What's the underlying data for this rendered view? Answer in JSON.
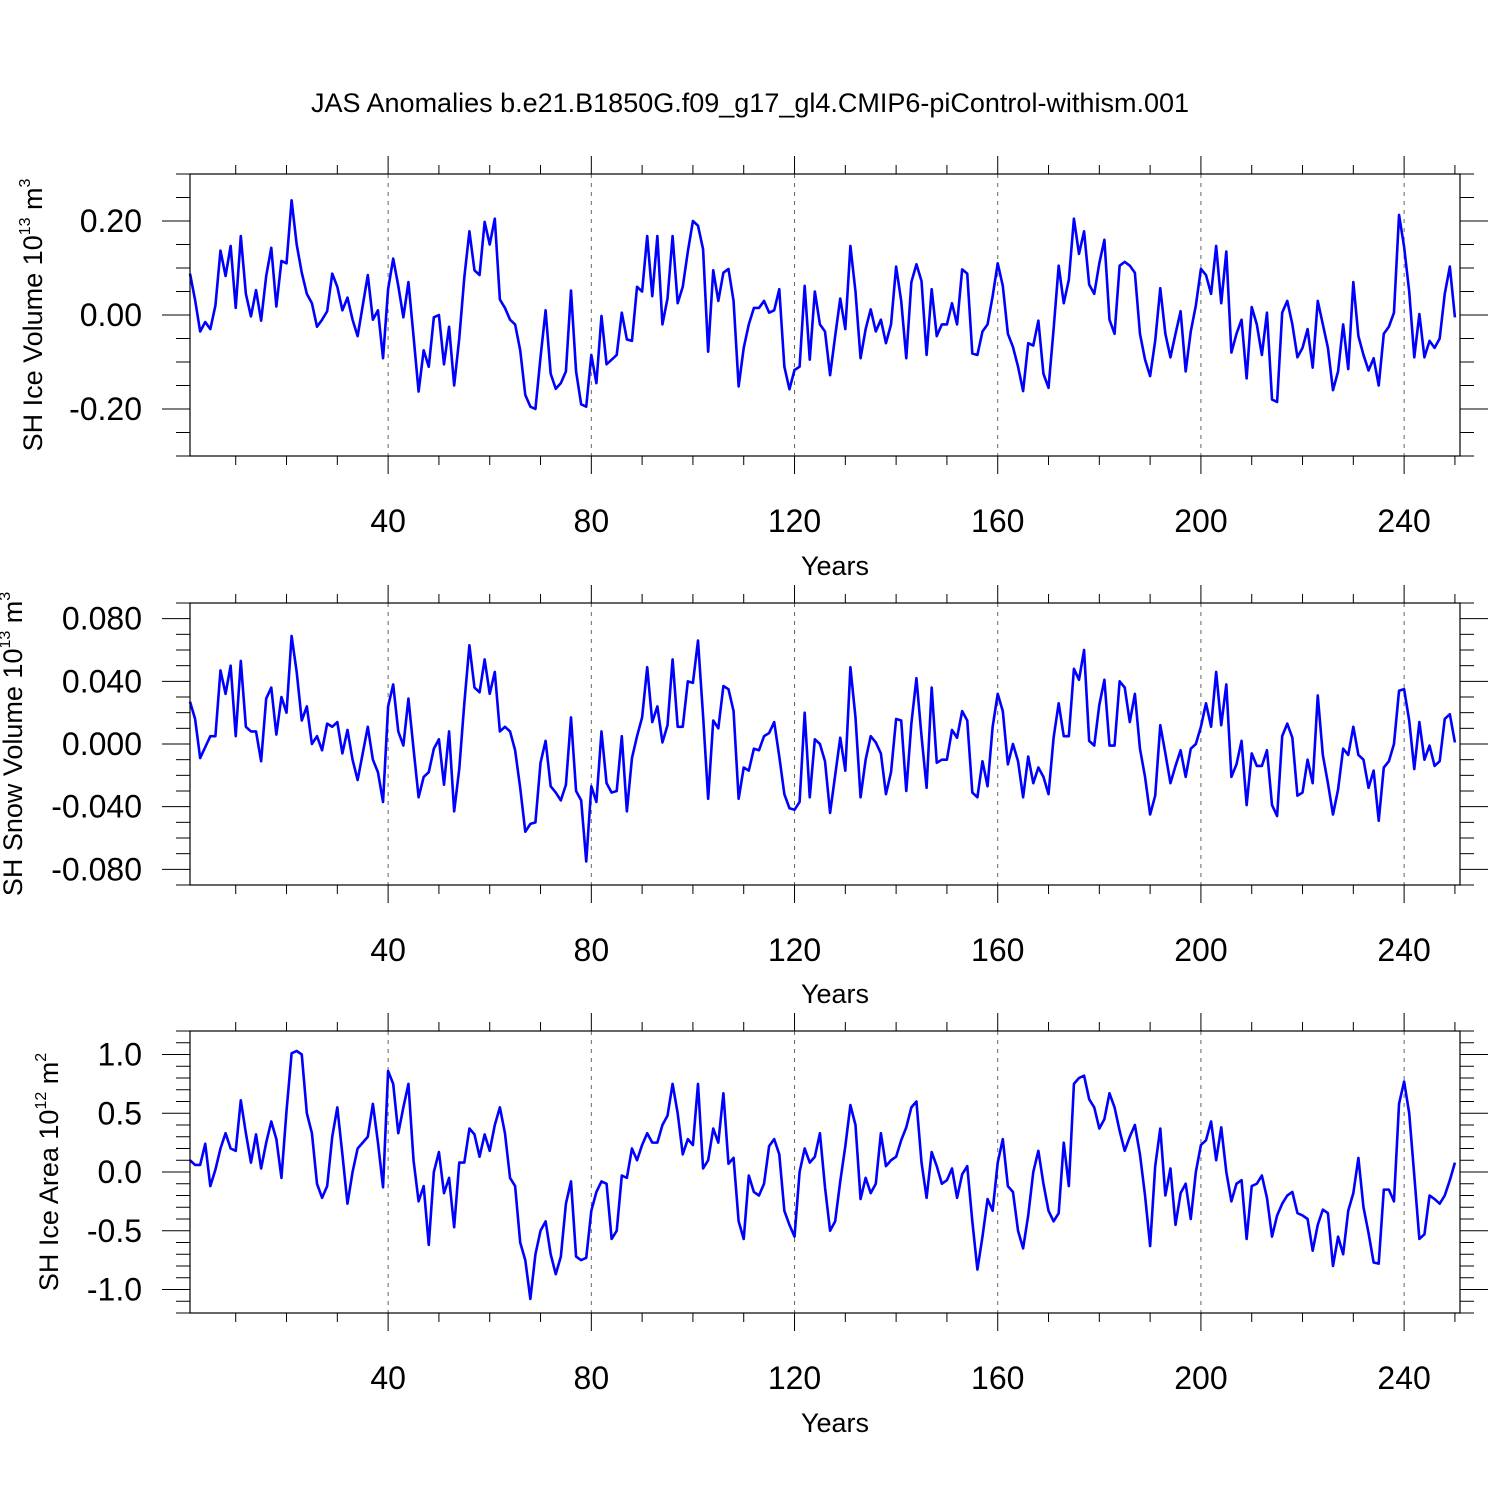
{
  "title": "JAS Anomalies b.e21.B1850G.f09_g17_gl4.CMIP6-piControl-withism.001",
  "line_color": "#0000ff",
  "chart_data": [
    {
      "type": "line",
      "ylabel": "SH Ice Volume 10",
      "ylabel_sup": "13",
      "ylabel_unit": " m",
      "ylabel_unit_sup": "3",
      "xlabel": "Years",
      "xlim": [
        1,
        251
      ],
      "ylim": [
        -0.3,
        0.3
      ],
      "xticks": [
        40,
        80,
        120,
        160,
        200,
        240
      ],
      "xtick_labels": [
        "40",
        "80",
        "120",
        "160",
        "200",
        "240"
      ],
      "yticks": [
        -0.2,
        0.0,
        0.2
      ],
      "ytick_labels": [
        "-0.20",
        "0.00",
        "0.20"
      ],
      "y_minor_step": 0.05,
      "series": [
        {
          "x_start": 1,
          "values": [
            0.088,
            0.032,
            -0.035,
            -0.015,
            -0.03,
            0.02,
            0.137,
            0.083,
            0.147,
            0.015,
            0.168,
            0.045,
            -0.003,
            0.053,
            -0.012,
            0.083,
            0.143,
            0.018,
            0.115,
            0.11,
            0.244,
            0.15,
            0.09,
            0.045,
            0.025,
            -0.025,
            -0.01,
            0.008,
            0.088,
            0.06,
            0.01,
            0.037,
            -0.01,
            -0.045,
            0.02,
            0.085,
            -0.01,
            0.01,
            -0.092,
            0.055,
            0.12,
            0.062,
            -0.005,
            0.07,
            -0.045,
            -0.163,
            -0.075,
            -0.11,
            -0.005,
            0.0,
            -0.105,
            -0.025,
            -0.15,
            -0.05,
            0.08,
            0.178,
            0.095,
            0.085,
            0.198,
            0.15,
            0.205,
            0.033,
            0.015,
            -0.01,
            -0.02,
            -0.075,
            -0.17,
            -0.195,
            -0.2,
            -0.09,
            0.01,
            -0.125,
            -0.157,
            -0.145,
            -0.12,
            0.052,
            -0.12,
            -0.19,
            -0.195,
            -0.085,
            -0.145,
            -0.002,
            -0.105,
            -0.095,
            -0.085,
            0.005,
            -0.052,
            -0.055,
            0.06,
            0.05,
            0.168,
            0.04,
            0.168,
            -0.02,
            0.035,
            0.168,
            0.025,
            0.06,
            0.135,
            0.2,
            0.19,
            0.14,
            -0.078,
            0.095,
            0.03,
            0.09,
            0.098,
            0.03,
            -0.152,
            -0.07,
            -0.02,
            0.015,
            0.015,
            0.03,
            0.005,
            0.01,
            0.055,
            -0.11,
            -0.158,
            -0.117,
            -0.11,
            0.062,
            -0.095,
            0.05,
            -0.02,
            -0.035,
            -0.128,
            -0.045,
            0.035,
            -0.03,
            0.147,
            0.05,
            -0.092,
            -0.03,
            0.012,
            -0.035,
            -0.01,
            -0.06,
            -0.02,
            0.103,
            0.03,
            -0.092,
            0.07,
            0.108,
            0.072,
            -0.085,
            0.055,
            -0.045,
            -0.02,
            -0.02,
            0.025,
            -0.02,
            0.097,
            0.088,
            -0.082,
            -0.085,
            -0.035,
            -0.02,
            0.04,
            0.11,
            0.062,
            -0.04,
            -0.068,
            -0.11,
            -0.162,
            -0.06,
            -0.065,
            -0.012,
            -0.125,
            -0.155,
            -0.03,
            0.105,
            0.025,
            0.075,
            0.205,
            0.13,
            0.178,
            0.065,
            0.045,
            0.11,
            0.16,
            -0.01,
            -0.04,
            0.105,
            0.113,
            0.105,
            0.09,
            -0.04,
            -0.095,
            -0.13,
            -0.055,
            0.057,
            -0.04,
            -0.09,
            -0.04,
            0.008,
            -0.12,
            -0.035,
            0.02,
            0.098,
            0.085,
            0.045,
            0.147,
            0.025,
            0.135,
            -0.08,
            -0.04,
            -0.01,
            -0.135,
            0.017,
            -0.02,
            -0.085,
            0.005,
            -0.18,
            -0.185,
            0.005,
            0.03,
            -0.02,
            -0.09,
            -0.07,
            -0.03,
            -0.112,
            0.03,
            -0.02,
            -0.07,
            -0.16,
            -0.12,
            -0.02,
            -0.115,
            0.07,
            -0.045,
            -0.085,
            -0.118,
            -0.092,
            -0.15,
            -0.04,
            -0.025,
            0.005,
            0.213,
            0.145,
            0.05,
            -0.09,
            0.002,
            -0.09,
            -0.055,
            -0.07,
            -0.05,
            0.045,
            0.103,
            -0.005
          ]
        }
      ]
    },
    {
      "type": "line",
      "ylabel": "SH Snow Volume 10",
      "ylabel_sup": "13",
      "ylabel_unit": " m",
      "ylabel_unit_sup": "3",
      "xlabel": "Years",
      "xlim": [
        1,
        251
      ],
      "ylim": [
        -0.09,
        0.09
      ],
      "xticks": [
        40,
        80,
        120,
        160,
        200,
        240
      ],
      "xtick_labels": [
        "40",
        "80",
        "120",
        "160",
        "200",
        "240"
      ],
      "yticks": [
        -0.08,
        -0.04,
        0.0,
        0.04,
        0.08
      ],
      "ytick_labels": [
        "-0.080",
        "-0.040",
        "0.000",
        "0.040",
        "0.080"
      ],
      "y_minor_step": 0.01,
      "series": [
        {
          "x_start": 1,
          "values": [
            0.027,
            0.016,
            -0.009,
            -0.002,
            0.005,
            0.005,
            0.047,
            0.032,
            0.05,
            0.005,
            0.053,
            0.011,
            0.008,
            0.008,
            -0.011,
            0.029,
            0.036,
            0.006,
            0.03,
            0.02,
            0.069,
            0.046,
            0.015,
            0.024,
            0.0,
            0.005,
            -0.004,
            0.013,
            0.011,
            0.014,
            -0.006,
            0.009,
            -0.01,
            -0.023,
            -0.006,
            0.011,
            -0.01,
            -0.018,
            -0.037,
            0.024,
            0.038,
            0.008,
            -0.001,
            0.029,
            -0.003,
            -0.034,
            -0.021,
            -0.018,
            -0.003,
            0.003,
            -0.026,
            0.008,
            -0.043,
            -0.016,
            0.026,
            0.063,
            0.036,
            0.033,
            0.054,
            0.032,
            0.046,
            0.008,
            0.011,
            0.008,
            -0.004,
            -0.028,
            -0.056,
            -0.051,
            -0.05,
            -0.012,
            0.002,
            -0.027,
            -0.031,
            -0.036,
            -0.026,
            0.017,
            -0.03,
            -0.036,
            -0.075,
            -0.027,
            -0.037,
            0.008,
            -0.025,
            -0.031,
            -0.03,
            0.005,
            -0.043,
            -0.009,
            0.005,
            0.017,
            0.049,
            0.014,
            0.024,
            0.001,
            0.012,
            0.054,
            0.011,
            0.011,
            0.04,
            0.039,
            0.066,
            0.018,
            -0.035,
            0.015,
            0.01,
            0.037,
            0.035,
            0.021,
            -0.035,
            -0.015,
            -0.017,
            -0.003,
            -0.004,
            0.005,
            0.007,
            0.014,
            -0.008,
            -0.032,
            -0.041,
            -0.042,
            -0.037,
            0.02,
            -0.034,
            0.003,
            0.0,
            -0.011,
            -0.044,
            -0.02,
            0.004,
            -0.017,
            0.049,
            0.017,
            -0.034,
            -0.01,
            0.005,
            0.001,
            -0.006,
            -0.032,
            -0.018,
            0.016,
            0.015,
            -0.03,
            0.013,
            0.042,
            0.005,
            -0.028,
            0.036,
            -0.012,
            -0.01,
            -0.01,
            0.009,
            0.004,
            0.021,
            0.015,
            -0.031,
            -0.034,
            -0.011,
            -0.027,
            0.011,
            0.032,
            0.021,
            -0.013,
            0.0,
            -0.011,
            -0.034,
            -0.008,
            -0.025,
            -0.015,
            -0.021,
            -0.032,
            0.004,
            0.026,
            0.005,
            0.005,
            0.048,
            0.041,
            0.06,
            0.002,
            -0.001,
            0.025,
            0.041,
            -0.001,
            -0.001,
            0.04,
            0.036,
            0.014,
            0.032,
            -0.003,
            -0.021,
            -0.045,
            -0.033,
            0.012,
            -0.006,
            -0.025,
            -0.014,
            -0.004,
            -0.021,
            -0.003,
            0.0,
            0.011,
            0.026,
            0.011,
            0.046,
            0.012,
            0.038,
            -0.021,
            -0.013,
            0.002,
            -0.039,
            -0.006,
            -0.014,
            -0.014,
            -0.004,
            -0.039,
            -0.046,
            0.005,
            0.013,
            0.004,
            -0.033,
            -0.031,
            -0.01,
            -0.025,
            0.031,
            -0.007,
            -0.025,
            -0.045,
            -0.029,
            -0.003,
            -0.007,
            0.011,
            -0.007,
            -0.01,
            -0.028,
            -0.017,
            -0.049,
            -0.015,
            -0.011,
            0.0,
            0.034,
            0.035,
            0.015,
            -0.016,
            0.014,
            -0.01,
            -0.001,
            -0.014,
            -0.011,
            0.016,
            0.019,
            0.001
          ]
        }
      ]
    },
    {
      "type": "line",
      "ylabel": "SH Ice Area 10",
      "ylabel_sup": "12",
      "ylabel_unit": " m",
      "ylabel_unit_sup": "2",
      "xlabel": "Years",
      "xlim": [
        1,
        251
      ],
      "ylim": [
        -1.2,
        1.2
      ],
      "xticks": [
        40,
        80,
        120,
        160,
        200,
        240
      ],
      "xtick_labels": [
        "40",
        "80",
        "120",
        "160",
        "200",
        "240"
      ],
      "yticks": [
        -1.0,
        -0.5,
        0.0,
        0.5,
        1.0
      ],
      "ytick_labels": [
        "-1.0",
        "-0.5",
        "0.0",
        "0.5",
        "1.0"
      ],
      "y_minor_step": 0.1,
      "series": [
        {
          "x_start": 1,
          "values": [
            0.1,
            0.06,
            0.06,
            0.24,
            -0.12,
            0.02,
            0.2,
            0.33,
            0.2,
            0.18,
            0.61,
            0.33,
            0.08,
            0.32,
            0.03,
            0.25,
            0.43,
            0.28,
            -0.05,
            0.52,
            1.01,
            1.03,
            1.0,
            0.5,
            0.33,
            -0.1,
            -0.22,
            -0.12,
            0.3,
            0.55,
            0.15,
            -0.27,
            0.0,
            0.2,
            0.25,
            0.3,
            0.58,
            0.25,
            -0.13,
            0.86,
            0.75,
            0.33,
            0.55,
            0.75,
            0.1,
            -0.25,
            -0.12,
            -0.62,
            0.0,
            0.17,
            -0.18,
            -0.05,
            -0.47,
            0.08,
            0.08,
            0.37,
            0.32,
            0.13,
            0.32,
            0.18,
            0.4,
            0.55,
            0.33,
            -0.05,
            -0.12,
            -0.6,
            -0.75,
            -1.08,
            -0.7,
            -0.5,
            -0.42,
            -0.7,
            -0.87,
            -0.72,
            -0.27,
            -0.08,
            -0.72,
            -0.75,
            -0.73,
            -0.33,
            -0.17,
            -0.08,
            -0.1,
            -0.57,
            -0.5,
            -0.03,
            -0.05,
            0.2,
            0.1,
            0.23,
            0.33,
            0.25,
            0.25,
            0.4,
            0.48,
            0.75,
            0.5,
            0.15,
            0.28,
            0.23,
            0.75,
            0.03,
            0.1,
            0.37,
            0.25,
            0.67,
            0.07,
            0.12,
            -0.42,
            -0.57,
            -0.03,
            -0.17,
            -0.2,
            -0.1,
            0.22,
            0.28,
            0.15,
            -0.33,
            -0.45,
            -0.55,
            0.0,
            0.2,
            0.08,
            0.13,
            0.33,
            -0.13,
            -0.5,
            -0.42,
            -0.08,
            0.22,
            0.57,
            0.4,
            -0.23,
            -0.05,
            -0.18,
            -0.1,
            0.33,
            0.05,
            0.1,
            0.13,
            0.27,
            0.38,
            0.55,
            0.6,
            0.08,
            -0.22,
            0.17,
            0.05,
            -0.1,
            -0.07,
            0.03,
            -0.22,
            -0.02,
            0.05,
            -0.42,
            -0.83,
            -0.55,
            -0.23,
            -0.33,
            0.08,
            0.28,
            -0.12,
            -0.17,
            -0.5,
            -0.65,
            -0.37,
            0.0,
            0.18,
            -0.1,
            -0.33,
            -0.42,
            -0.35,
            0.25,
            -0.12,
            0.75,
            0.8,
            0.82,
            0.62,
            0.55,
            0.37,
            0.45,
            0.67,
            0.55,
            0.35,
            0.18,
            0.3,
            0.4,
            0.15,
            -0.2,
            -0.63,
            0.05,
            0.37,
            -0.2,
            0.03,
            -0.45,
            -0.18,
            -0.1,
            -0.4,
            0.0,
            0.23,
            0.27,
            0.43,
            0.1,
            0.38,
            0.0,
            -0.25,
            -0.1,
            -0.07,
            -0.57,
            -0.12,
            -0.1,
            -0.03,
            -0.22,
            -0.55,
            -0.37,
            -0.27,
            -0.2,
            -0.17,
            -0.35,
            -0.37,
            -0.4,
            -0.67,
            -0.45,
            -0.32,
            -0.35,
            -0.8,
            -0.55,
            -0.7,
            -0.33,
            -0.18,
            0.12,
            -0.3,
            -0.52,
            -0.77,
            -0.78,
            -0.15,
            -0.15,
            -0.25,
            0.58,
            0.77,
            0.5,
            -0.03,
            -0.57,
            -0.53,
            -0.2,
            -0.23,
            -0.27,
            -0.2,
            -0.07,
            0.08
          ]
        }
      ]
    }
  ]
}
